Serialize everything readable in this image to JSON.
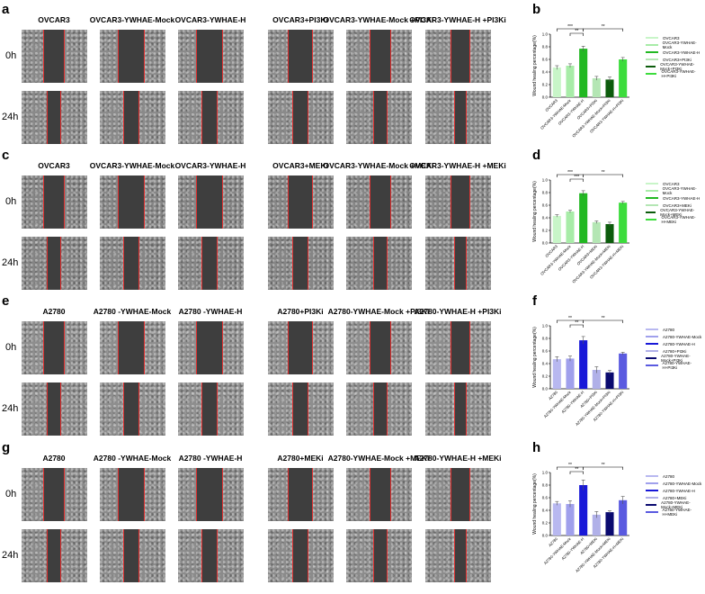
{
  "row_labels": {
    "t0": "0h",
    "t24": "24h"
  },
  "images": [
    {
      "letter": "a",
      "titles": [
        "OVCAR3",
        "OVCAR3-YWHAE-Mock",
        "OVCAR3-YWHAE-H",
        "OVCAR3+PI3Ki",
        "OVCAR3-YWHAE-Mock +PI3Ki",
        "OVCAR3-YWHAE-H +PI3Ki"
      ],
      "tone": "#8a8a8a"
    },
    {
      "letter": "c",
      "titles": [
        "OVCAR3",
        "OVCAR3-YWHAE-Mock",
        "OVCAR3-YWHAE-H",
        "OVCAR3+MEKi",
        "OVCAR3-YWHAE-Mock +MEKi",
        "OVCAR3-YWHAE-H +MEKi"
      ],
      "tone": "#858585"
    },
    {
      "letter": "e",
      "titles": [
        "A2780",
        "A2780 -YWHAE-Mock",
        "A2780 -YWHAE-H",
        "A2780+PI3Ki",
        "A2780-YWHAE-Mock +PI3Ki",
        "A2780-YWHAE-H +PI3Ki"
      ],
      "tone": "#8e8e8e"
    },
    {
      "letter": "g",
      "titles": [
        "A2780",
        "A2780 -YWHAE-Mock",
        "A2780 -YWHAE-H",
        "A2780+MEKi",
        "A2780-YWHAE-Mock +MEKi",
        "A2780-YWHAE-H +MEKi"
      ],
      "tone": "#8b8b8b"
    }
  ],
  "chart_data": [
    {
      "letter": "b",
      "type": "bar",
      "ylabel": "Wound healing percentage(%)",
      "ylim": [
        0,
        1.0
      ],
      "yticks": [
        "0.0",
        "0.2",
        "0.4",
        "0.6",
        "0.8",
        "1.0"
      ],
      "categories": [
        "OVCAR3",
        "OVCAR3-YWHAE-Mock",
        "OVCAR3-YWHAE-H",
        "OVCAR3+PI3Ki",
        "OVCAR3-YWHAE-Mock+PI3Ki",
        "OVCAR3-YWHAE-H+PI3Ki"
      ],
      "values": [
        0.47,
        0.5,
        0.77,
        0.3,
        0.28,
        0.6
      ],
      "errors": [
        0.03,
        0.03,
        0.04,
        0.03,
        0.04,
        0.03
      ],
      "colors": [
        "#c8f5c8",
        "#a8eca8",
        "#22b822",
        "#b4e6b4",
        "#0c5c0c",
        "#3cdc3c"
      ],
      "significance": [
        {
          "from": 0,
          "to": 2,
          "label": "***"
        },
        {
          "from": 1,
          "to": 2,
          "label": "**"
        },
        {
          "from": 2,
          "to": 5,
          "label": "**"
        }
      ],
      "legend": [
        "OVCAR3",
        "OVCAR3-YWHAE-Mock",
        "OVCAR3-YWHAE-H",
        "OVCAR3+PI3Ki",
        "OVCAR3-YWHAE-Mock+PI3Ki",
        "OVCAR3-YWHAE-H+PI3Ki"
      ]
    },
    {
      "letter": "d",
      "type": "bar",
      "ylabel": "Wound healing percentage(%)",
      "ylim": [
        0,
        1.0
      ],
      "yticks": [
        "0.0",
        "0.2",
        "0.4",
        "0.6",
        "0.8",
        "1.0"
      ],
      "categories": [
        "OVCAR3",
        "OVCAR3-YWHAE-Mock",
        "OVCAR3-YWHAE-H",
        "OVCAR3+MEKi",
        "OVCAR3-YWHAE-Mock+MEKi",
        "OVCAR3-YWHAE-H+MEKi"
      ],
      "values": [
        0.43,
        0.5,
        0.79,
        0.33,
        0.3,
        0.64
      ],
      "errors": [
        0.02,
        0.02,
        0.04,
        0.02,
        0.03,
        0.02
      ],
      "colors": [
        "#c8f5c8",
        "#a8eca8",
        "#22b822",
        "#b4e6b4",
        "#0c5c0c",
        "#3cdc3c"
      ],
      "significance": [
        {
          "from": 0,
          "to": 2,
          "label": "***"
        },
        {
          "from": 1,
          "to": 2,
          "label": "***"
        },
        {
          "from": 2,
          "to": 5,
          "label": "**"
        }
      ],
      "legend": [
        "OVCAR3",
        "OVCAR3-YWHAE-Mock",
        "OVCAR3-YWHAE-H",
        "OVCAR3+MEKi",
        "OVCAR3-YWHAE-Mock+MEKi",
        "OVCAR3-YWHAE-H+MEKi"
      ]
    },
    {
      "letter": "f",
      "type": "bar",
      "ylabel": "Wound healing percentage(%)",
      "ylim": [
        0,
        1.0
      ],
      "yticks": [
        "0.0",
        "0.2",
        "0.4",
        "0.6",
        "0.8",
        "1.0"
      ],
      "categories": [
        "A2780",
        "A2780-YWHAE-Mock",
        "A2780-YWHAE-H",
        "A2780+PI3Ki",
        "A2780-YWHAE-Mock+PI3Ki",
        "A2780-YWHAE-H+PI3Ki"
      ],
      "values": [
        0.47,
        0.48,
        0.77,
        0.3,
        0.26,
        0.56
      ],
      "errors": [
        0.04,
        0.04,
        0.06,
        0.05,
        0.03,
        0.02
      ],
      "colors": [
        "#b8b8f0",
        "#a0a0ec",
        "#1818d8",
        "#b0b0e8",
        "#0a0a70",
        "#5a5ae0"
      ],
      "significance": [
        {
          "from": 0,
          "to": 2,
          "label": "**"
        },
        {
          "from": 1,
          "to": 2,
          "label": "**"
        },
        {
          "from": 2,
          "to": 5,
          "label": "**"
        }
      ],
      "legend": [
        "A2780",
        "A2780-YWHAE-Mock",
        "A2780-YWHAE-H",
        "A2780+PI3Ki",
        "A2780-YWHAE-Mock+PI3Ki",
        "A2780-YWHAE-H+PI3Ki"
      ]
    },
    {
      "letter": "h",
      "type": "bar",
      "ylabel": "Wound healing percentage(%)",
      "ylim": [
        0,
        1.0
      ],
      "yticks": [
        "0.0",
        "0.2",
        "0.4",
        "0.6",
        "0.8",
        "1.0"
      ],
      "categories": [
        "A2780",
        "A2780-YWHAE-Mock",
        "A2780-YWHAE-H",
        "A2780+MEKi",
        "A2780-YWHAE-Mock+MEKi",
        "A2780-YWHAE-H+MEKi"
      ],
      "values": [
        0.51,
        0.5,
        0.8,
        0.33,
        0.37,
        0.56
      ],
      "errors": [
        0.03,
        0.05,
        0.08,
        0.05,
        0.02,
        0.06
      ],
      "colors": [
        "#b8b8f0",
        "#a0a0ec",
        "#1818d8",
        "#b0b0e8",
        "#0a0a70",
        "#5a5ae0"
      ],
      "significance": [
        {
          "from": 0,
          "to": 2,
          "label": "**"
        },
        {
          "from": 1,
          "to": 2,
          "label": "**"
        },
        {
          "from": 2,
          "to": 5,
          "label": "**"
        }
      ],
      "legend": [
        "A2780",
        "A2780-YWHAE-Mock",
        "A2780-YWHAE-H",
        "A2780+MEKi",
        "A2780-YWHAE-Mock+MEKi",
        "A2780-YWHAE-H+MEKi"
      ]
    }
  ]
}
